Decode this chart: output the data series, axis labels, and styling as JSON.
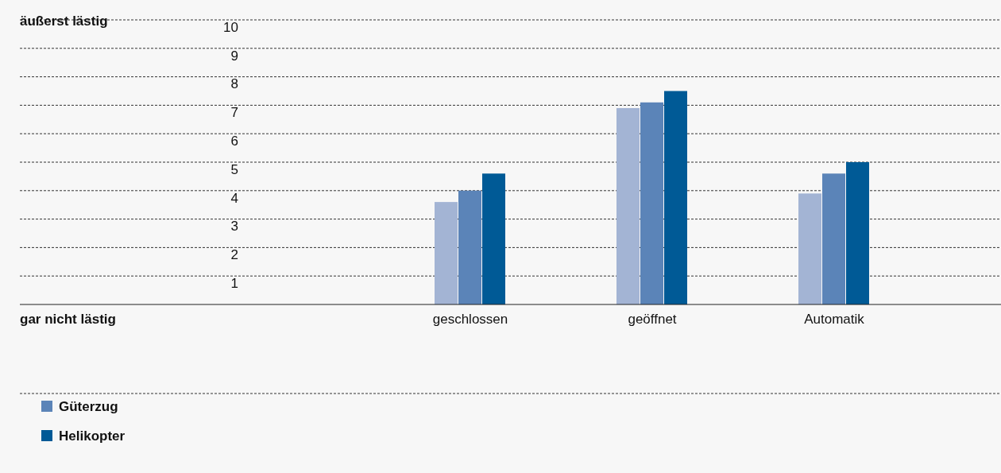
{
  "chart_data": {
    "type": "bar",
    "categories": [
      "geschlossen",
      "geöffnet",
      "Automatik"
    ],
    "series": [
      {
        "color": "#a3b4d4",
        "values": [
          3.6,
          6.9,
          3.9
        ]
      },
      {
        "name": "Güterzug",
        "color": "#5b84b8",
        "values": [
          4.0,
          7.1,
          4.6
        ]
      },
      {
        "name": "Helikopter",
        "color": "#005a96",
        "values": [
          4.6,
          7.5,
          5.0
        ]
      }
    ],
    "ylim": [
      0,
      10
    ],
    "yticks": [
      1,
      2,
      3,
      4,
      5,
      6,
      7,
      8,
      9,
      10
    ],
    "grid": "y",
    "legend": "bottom left",
    "annotations": [
      "äußerst lästig",
      "gar nicht lästig"
    ]
  }
}
